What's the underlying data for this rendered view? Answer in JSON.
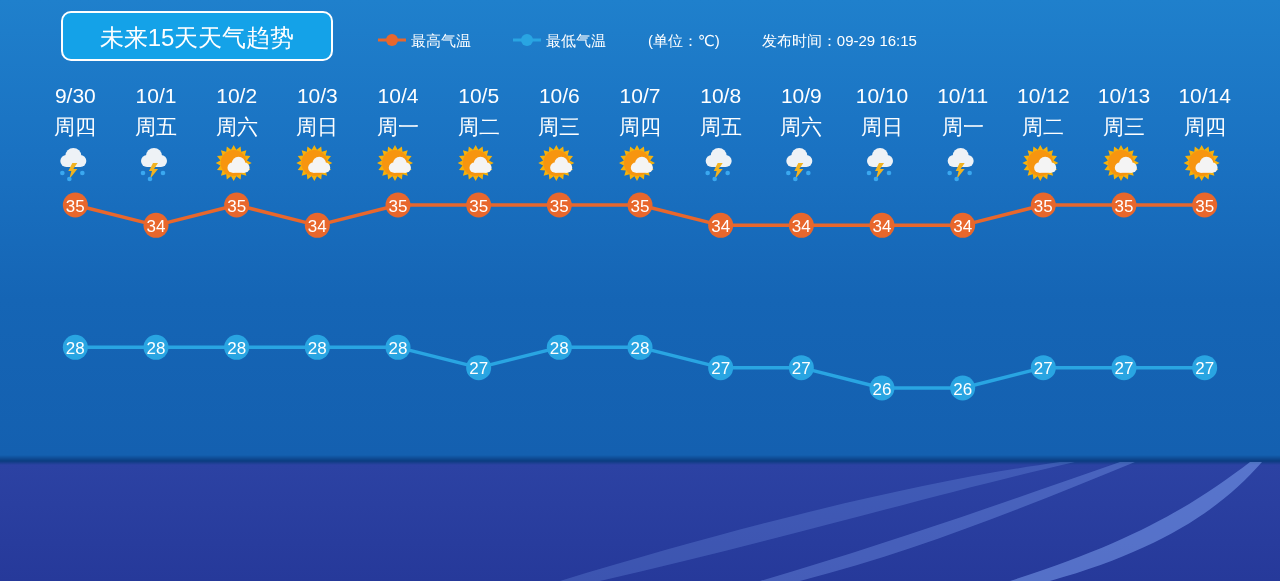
{
  "chart_data": {
    "type": "line",
    "title": "未来15天天气趋势",
    "categories": [
      "9/30\n周四",
      "10/1\n周五",
      "10/2\n周六",
      "10/3\n周日",
      "10/4\n周一",
      "10/5\n周二",
      "10/6\n周三",
      "10/7\n周四",
      "10/8\n周五",
      "10/9\n周六",
      "10/10\n周日",
      "10/11\n周一",
      "10/12\n周二",
      "10/13\n周三",
      "10/14\n周四"
    ],
    "series": [
      {
        "name": "最高气温",
        "color": "#e8672c",
        "values": [
          35,
          34,
          35,
          34,
          35,
          35,
          35,
          35,
          34,
          34,
          34,
          34,
          35,
          35,
          35
        ]
      },
      {
        "name": "最低气温",
        "color": "#29a5e2",
        "values": [
          28,
          28,
          28,
          28,
          28,
          27,
          28,
          28,
          27,
          27,
          26,
          26,
          27,
          27,
          27
        ]
      }
    ],
    "annotations": [
      "(单位：℃)",
      "发布时间：09-29 16:15"
    ],
    "legend": "top",
    "marker": "circle",
    "line_style": "solid",
    "data_labels": true
  }
}
